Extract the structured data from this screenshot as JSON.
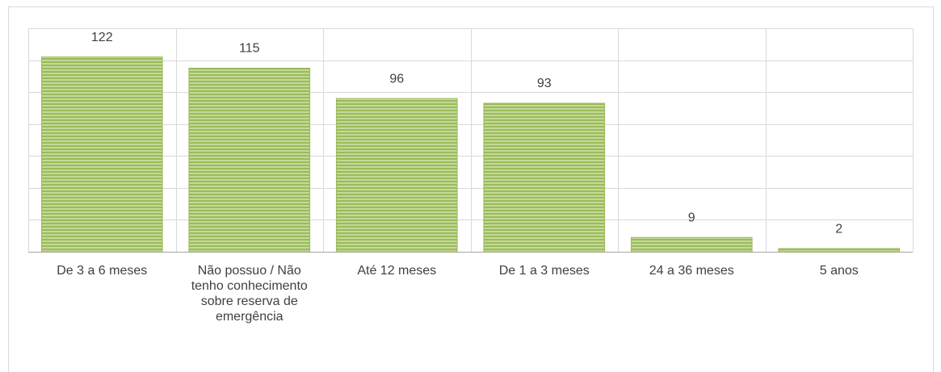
{
  "chart_data": {
    "type": "bar",
    "categories": [
      "De 3 a 6 meses",
      "Não possuo / Não tenho conhecimento sobre reserva de emergência",
      "Até 12 meses",
      "De 1 a 3 meses",
      "24 a 36 meses",
      "5 anos"
    ],
    "values": [
      122,
      115,
      96,
      93,
      9,
      2
    ],
    "color": "#9bbb59",
    "ylim": [
      0,
      140
    ],
    "yticks": [
      0,
      20,
      40,
      60,
      80,
      100,
      120,
      140
    ],
    "grid": true
  }
}
